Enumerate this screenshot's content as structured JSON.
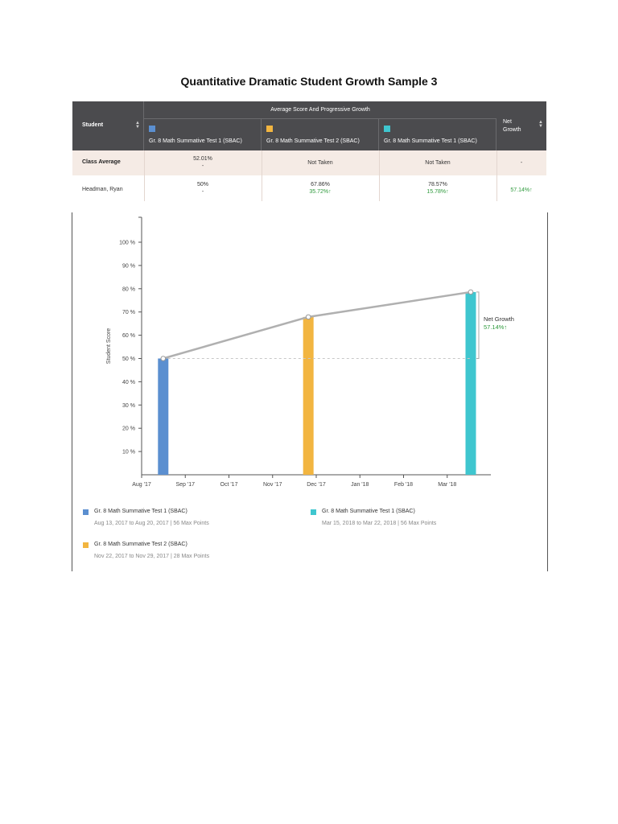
{
  "document": {
    "title": "Quantitative Dramatic Student Growth Sample 3"
  },
  "table": {
    "student_header": "Student",
    "group_header": "Average Score And Progressive Growth",
    "net_header_line1": "Net",
    "net_header_line2": "Growth",
    "tests": [
      {
        "label": "Gr. 8 Math Summative Test 1 (SBAC)",
        "color": "#5b8fd0"
      },
      {
        "label": "Gr. 8 Math Summative Test 2 (SBAC)",
        "color": "#f2b540"
      },
      {
        "label": "Gr. 8 Math Summative Test 1 (SBAC)",
        "color": "#3fc6cf"
      }
    ],
    "rows": [
      {
        "name": "Class Average",
        "cells": [
          {
            "score": "52.01%",
            "growth": "-"
          },
          {
            "score": "Not Taken",
            "growth": ""
          },
          {
            "score": "Not Taken",
            "growth": ""
          }
        ],
        "net": "-"
      },
      {
        "name": "Headman, Ryan",
        "cells": [
          {
            "score": "50%",
            "growth": "-"
          },
          {
            "score": "67.86%",
            "growth": "35.72%↑"
          },
          {
            "score": "78.57%",
            "growth": "15.78%↑"
          }
        ],
        "net": "57.14%↑"
      }
    ]
  },
  "chart_data": {
    "type": "bar",
    "ylabel": "Student Score",
    "ylim": [
      0,
      100
    ],
    "yticks": [
      "10 %",
      "20 %",
      "30 %",
      "40 %",
      "50 %",
      "60 %",
      "70 %",
      "80 %",
      "90 %",
      "100 %"
    ],
    "xticks": [
      "Aug '17",
      "Sep '17",
      "Oct '17",
      "Nov '17",
      "Dec '17",
      "Jan '18",
      "Feb '18",
      "Mar '18"
    ],
    "series": [
      {
        "name": "Gr. 8 Math Summative Test 1 (SBAC)",
        "x": "2017-08-16",
        "value": 50,
        "color": "#5b8fd0"
      },
      {
        "name": "Gr. 8 Math Summative Test 2 (SBAC)",
        "x": "2017-11-25",
        "value": 67.86,
        "color": "#f2b540"
      },
      {
        "name": "Gr. 8 Math Summative Test 1 (SBAC)",
        "x": "2018-03-18",
        "value": 78.57,
        "color": "#3fc6cf"
      }
    ],
    "baseline": 50,
    "annotation": {
      "label": "Net Growth",
      "value": "57.14%↑"
    },
    "legend": [
      {
        "name": "Gr. 8 Math Summative Test 1 (SBAC)",
        "detail": "Aug 13, 2017 to Aug 20, 2017 | 56 Max Points",
        "color": "#5b8fd0"
      },
      {
        "name": "Gr. 8 Math Summative Test 1 (SBAC)",
        "detail": "Mar 15, 2018 to Mar 22, 2018 | 56 Max Points",
        "color": "#3fc6cf"
      },
      {
        "name": "Gr. 8 Math Summative Test 2 (SBAC)",
        "detail": "Nov 22, 2017 to Nov 29, 2017 | 28 Max Points",
        "color": "#f2b540"
      }
    ]
  }
}
